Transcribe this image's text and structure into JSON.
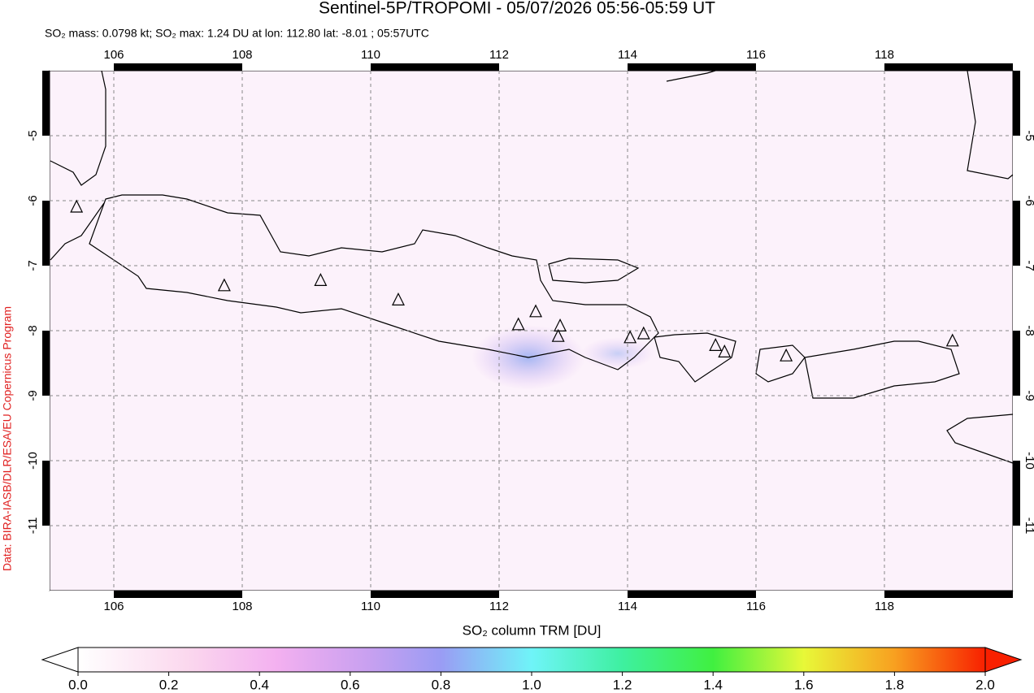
{
  "header": {
    "title": "Sentinel-5P/TROPOMI - 05/07/2026 05:56-05:59 UT",
    "subtitle": "SO₂ mass: 0.0798 kt; SO₂ max: 1.24 DU at lon: 112.80 lat: -8.01 ; 05:57UTC"
  },
  "credit": "Data: BIRA-IASB/DLR/ESA/EU Copernicus Program",
  "map": {
    "xlim": [
      105,
      120
    ],
    "ylim": [
      -12,
      -4
    ],
    "xticks": [
      106,
      108,
      110,
      112,
      114,
      116,
      118
    ],
    "yticks": [
      -5,
      -6,
      -7,
      -8,
      -9,
      -10,
      -11
    ],
    "volcanoes": [
      {
        "lon": 105.42,
        "lat": -6.1
      },
      {
        "lon": 107.72,
        "lat": -7.31
      },
      {
        "lon": 109.22,
        "lat": -7.23
      },
      {
        "lon": 110.43,
        "lat": -7.53
      },
      {
        "lon": 112.3,
        "lat": -7.91
      },
      {
        "lon": 112.57,
        "lat": -7.71
      },
      {
        "lon": 112.95,
        "lat": -7.93
      },
      {
        "lon": 112.92,
        "lat": -8.09
      },
      {
        "lon": 114.04,
        "lat": -8.11
      },
      {
        "lon": 114.25,
        "lat": -8.05
      },
      {
        "lon": 115.37,
        "lat": -8.23
      },
      {
        "lon": 115.51,
        "lat": -8.33
      },
      {
        "lon": 116.47,
        "lat": -8.39
      },
      {
        "lon": 119.06,
        "lat": -8.16
      }
    ]
  },
  "colorbar": {
    "label": "SO₂ column TRM [DU]",
    "lim": [
      0,
      2
    ],
    "ticks": [
      {
        "value": 0,
        "label": "0.0"
      },
      {
        "value": 0.2,
        "label": "0.2"
      },
      {
        "value": 0.4,
        "label": "0.4"
      },
      {
        "value": 0.6,
        "label": "0.6"
      },
      {
        "value": 0.8,
        "label": "0.8"
      },
      {
        "value": 1.0,
        "label": "1.0"
      },
      {
        "value": 1.2,
        "label": "1.2"
      },
      {
        "value": 1.4,
        "label": "1.4"
      },
      {
        "value": 1.6,
        "label": "1.6"
      },
      {
        "value": 1.8,
        "label": "1.8"
      },
      {
        "value": 2.0,
        "label": "2.0"
      }
    ]
  }
}
